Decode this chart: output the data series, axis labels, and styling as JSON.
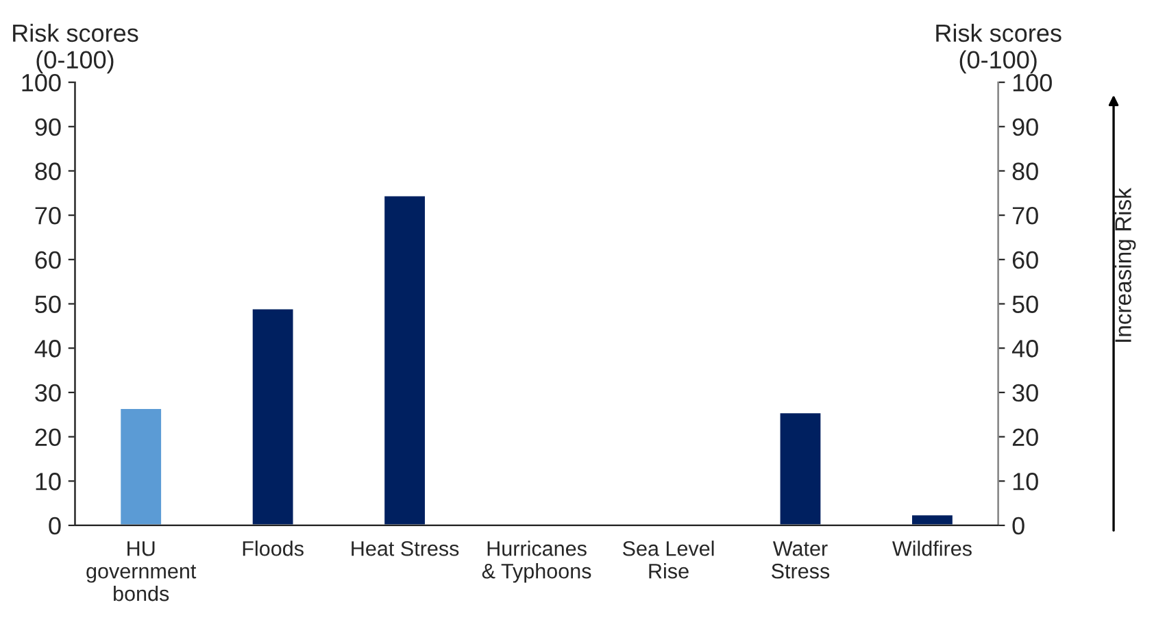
{
  "chart_data": {
    "type": "bar",
    "ylabel": "Risk scores\n(0-100)",
    "y2label": "Risk scores\n(0-100)",
    "categories": [
      "HU\ngovernment\nbonds",
      "Floods",
      "Heat Stress",
      "Hurricanes\n& Typhoons",
      "Sea Level\nRise",
      "Water\nStress",
      "Wildfires"
    ],
    "values": [
      26.5,
      49,
      74.5,
      null,
      null,
      25.5,
      2.5
    ],
    "colors": [
      "#5b9bd5",
      "#002060",
      "#002060",
      "#002060",
      "#002060",
      "#002060",
      "#002060"
    ],
    "ylim": [
      0,
      100
    ],
    "yticks": [
      0,
      10,
      20,
      30,
      40,
      50,
      60,
      70,
      80,
      90,
      100
    ],
    "y2lim": [
      0,
      100
    ],
    "y2ticks": [
      0,
      10,
      20,
      30,
      40,
      50,
      60,
      70,
      80,
      90,
      100
    ],
    "annotations": [
      "Increasing Risk"
    ],
    "grid": false,
    "legend": false
  }
}
